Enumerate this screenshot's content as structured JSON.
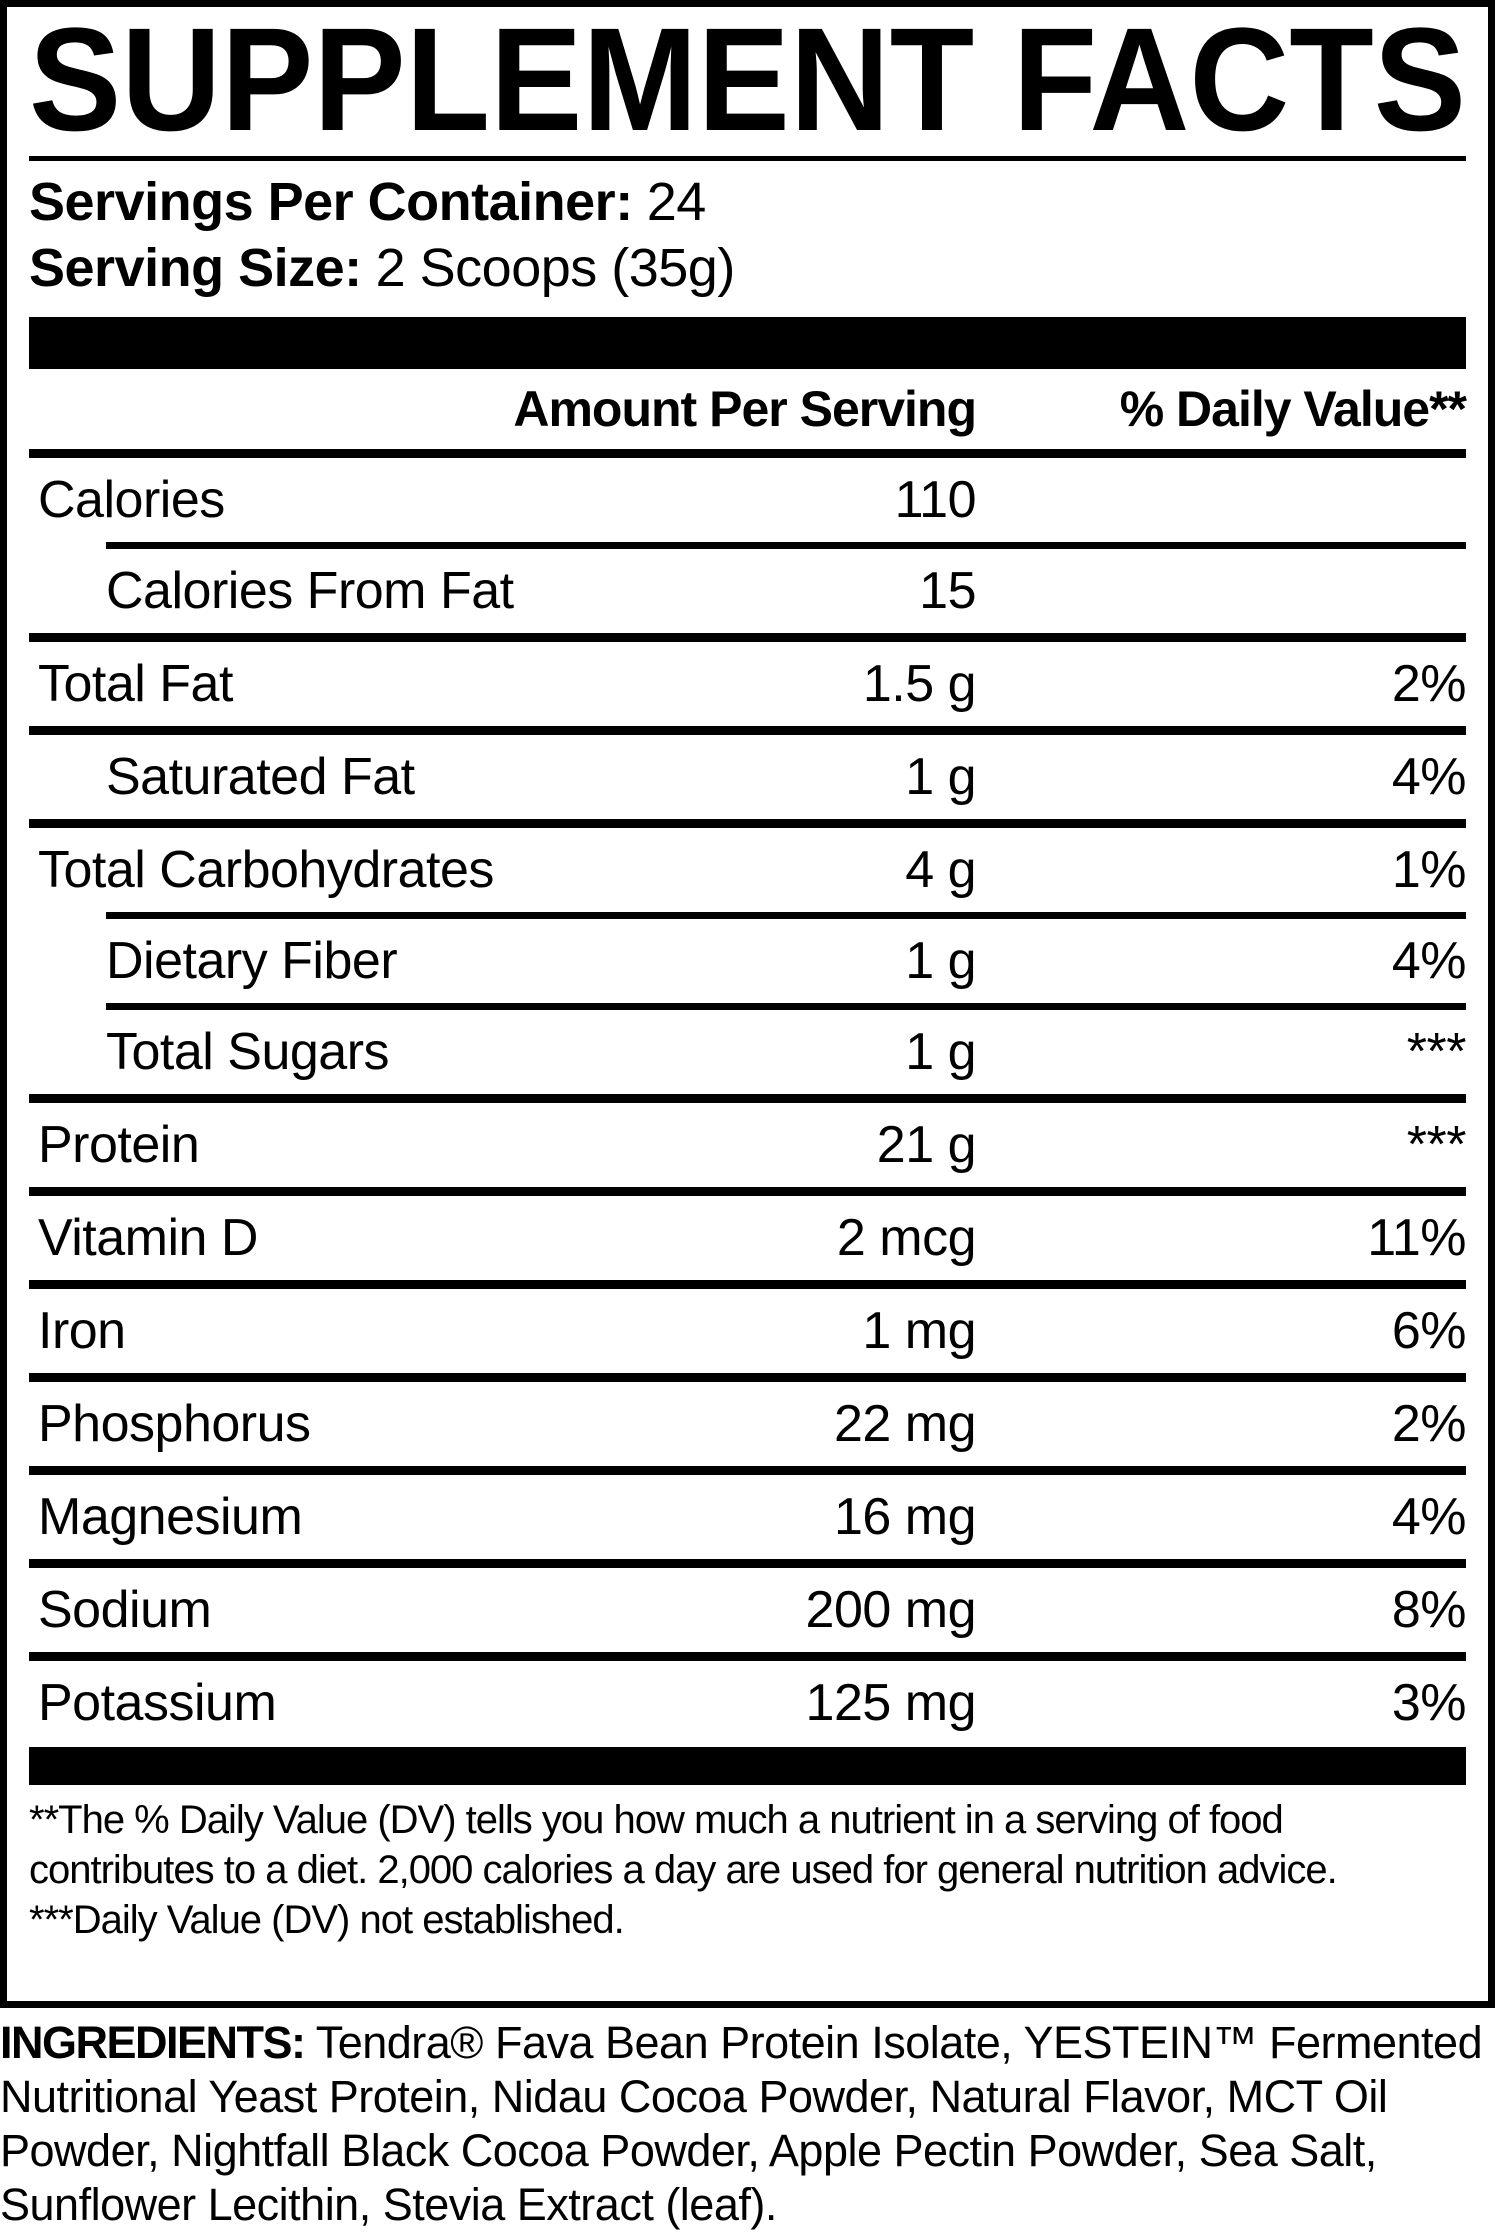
{
  "panel": {
    "title": "SUPPLEMENT FACTS",
    "servings_per_container_label": "Servings Per Container:",
    "servings_per_container_value": "24",
    "serving_size_label": "Serving Size:",
    "serving_size_value": "2 Scoops (35g)",
    "columns": {
      "amount": "Amount Per Serving",
      "daily_value": "% Daily Value**"
    },
    "rows": [
      {
        "label": "Calories",
        "amount": "110",
        "dv": "",
        "indent": false,
        "separator": "indented"
      },
      {
        "label": "Calories From Fat",
        "amount": "15",
        "dv": "",
        "indent": true,
        "separator": "full"
      },
      {
        "label": "Total Fat",
        "amount": "1.5 g",
        "dv": "2%",
        "indent": false,
        "separator": "full"
      },
      {
        "label": "Saturated Fat",
        "amount": "1 g",
        "dv": "4%",
        "indent": true,
        "separator": "full"
      },
      {
        "label": "Total Carbohydrates",
        "amount": "4 g",
        "dv": "1%",
        "indent": false,
        "separator": "indented"
      },
      {
        "label": "Dietary Fiber",
        "amount": "1 g",
        "dv": "4%",
        "indent": true,
        "separator": "indented"
      },
      {
        "label": "Total Sugars",
        "amount": "1 g",
        "dv": "***",
        "indent": true,
        "separator": "full"
      },
      {
        "label": "Protein",
        "amount": "21 g",
        "dv": "***",
        "indent": false,
        "separator": "full"
      },
      {
        "label": "Vitamin D",
        "amount": "2 mcg",
        "dv": "11%",
        "indent": false,
        "separator": "full"
      },
      {
        "label": "Iron",
        "amount": "1 mg",
        "dv": "6%",
        "indent": false,
        "separator": "full"
      },
      {
        "label": "Phosphorus",
        "amount": "22 mg",
        "dv": "2%",
        "indent": false,
        "separator": "full"
      },
      {
        "label": "Magnesium",
        "amount": "16 mg",
        "dv": "4%",
        "indent": false,
        "separator": "full"
      },
      {
        "label": "Sodium",
        "amount": "200 mg",
        "dv": "8%",
        "indent": false,
        "separator": "full"
      },
      {
        "label": "Potassium",
        "amount": "125 mg",
        "dv": "3%",
        "indent": false,
        "separator": "none"
      }
    ],
    "footnotes": [
      "**The % Daily Value (DV) tells you how much a nutrient in a serving of food contributes to a diet. 2,000 calories a day are used for general nutrition advice.",
      "***Daily Value (DV) not established."
    ]
  },
  "ingredients": {
    "label": "INGREDIENTS:",
    "text": "Tendra® Fava Bean Protein Isolate, YESTEIN™ Fermented Nutritional Yeast Protein, Nidau Cocoa Powder, Natural Flavor, MCT Oil Powder, Nightfall Black Cocoa Powder, Apple Pectin Powder, Sea Salt, Sunflower Lecithin, Stevia Extract (leaf)."
  },
  "colors": {
    "ink": "#000000",
    "paper": "#ffffff"
  }
}
